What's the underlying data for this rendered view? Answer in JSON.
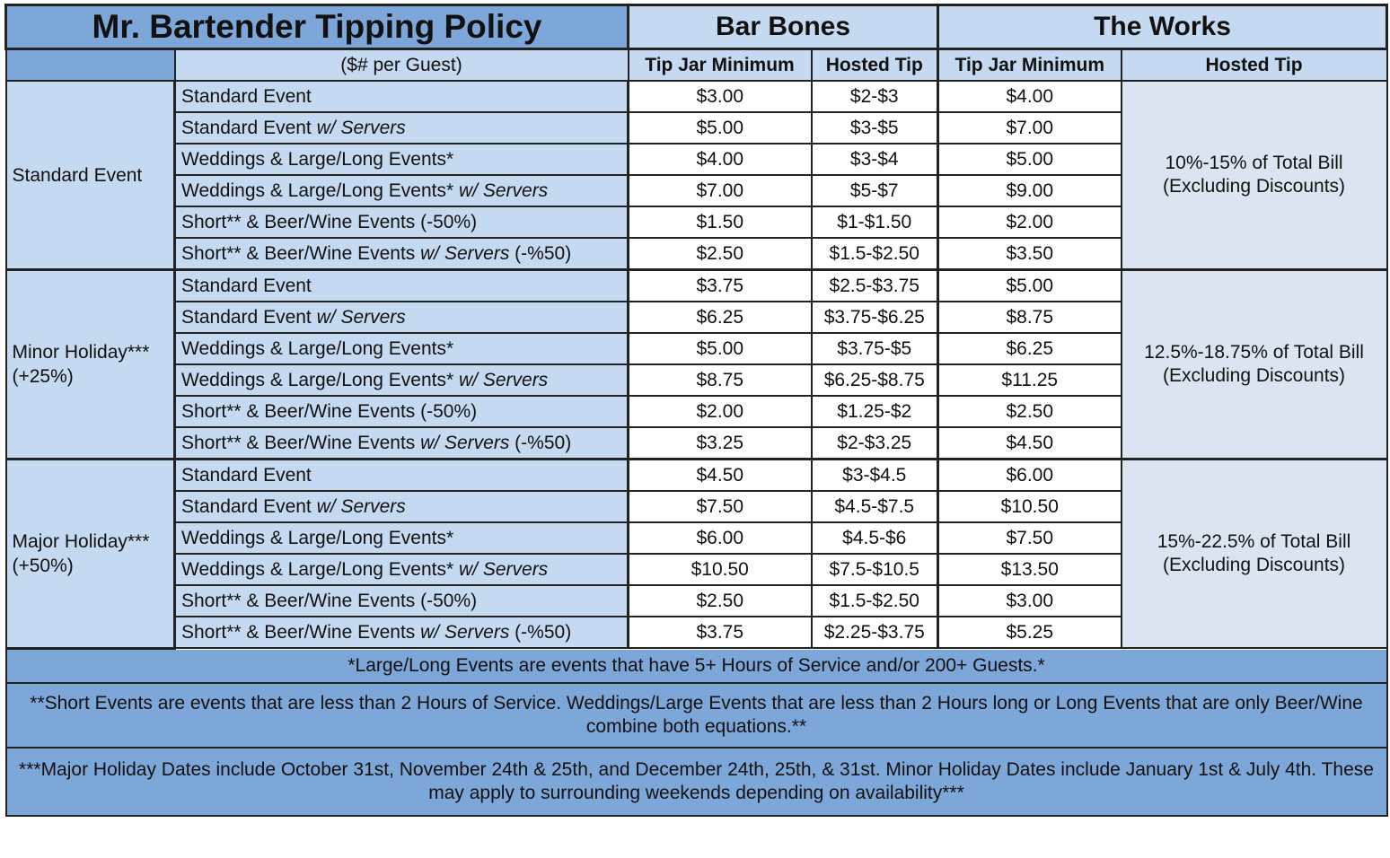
{
  "title": "Mr. Bartender Tipping Policy",
  "packages": [
    {
      "name": "Bar Bones",
      "col1": "Tip Jar Minimum",
      "col2": "Hosted Tip"
    },
    {
      "name": "The Works",
      "col1": "Tip Jar Minimum",
      "col2": "Hosted Tip"
    }
  ],
  "unit_note": "($# per Guest)",
  "event_labels": {
    "standard": "Standard Event",
    "wedding": "Weddings & Large/Long Events*",
    "short": "Short** & Beer/Wine Events",
    "w_servers": "w/ Servers",
    "short_pct": "(-50%)",
    "short_servers_pct": "(-%50)"
  },
  "sections": [
    {
      "category": "Standard Event",
      "category_sub": "",
      "hosted_line1": "10%-15% of Total Bill",
      "hosted_line2": "(Excluding Discounts)",
      "rows": [
        {
          "bb_jar": "$3.00",
          "bb_hosted": "$2-$3",
          "tw_jar": "$4.00"
        },
        {
          "bb_jar": "$5.00",
          "bb_hosted": "$3-$5",
          "tw_jar": "$7.00"
        },
        {
          "bb_jar": "$4.00",
          "bb_hosted": "$3-$4",
          "tw_jar": "$5.00"
        },
        {
          "bb_jar": "$7.00",
          "bb_hosted": "$5-$7",
          "tw_jar": "$9.00"
        },
        {
          "bb_jar": "$1.50",
          "bb_hosted": "$1-$1.50",
          "tw_jar": "$2.00"
        },
        {
          "bb_jar": "$2.50",
          "bb_hosted": "$1.5-$2.50",
          "tw_jar": "$3.50"
        }
      ]
    },
    {
      "category": "Minor Holiday***",
      "category_sub": "(+25%)",
      "hosted_line1": "12.5%-18.75% of Total Bill",
      "hosted_line2": "(Excluding Discounts)",
      "rows": [
        {
          "bb_jar": "$3.75",
          "bb_hosted": "$2.5-$3.75",
          "tw_jar": "$5.00"
        },
        {
          "bb_jar": "$6.25",
          "bb_hosted": "$3.75-$6.25",
          "tw_jar": "$8.75"
        },
        {
          "bb_jar": "$5.00",
          "bb_hosted": "$3.75-$5",
          "tw_jar": "$6.25"
        },
        {
          "bb_jar": "$8.75",
          "bb_hosted": "$6.25-$8.75",
          "tw_jar": "$11.25"
        },
        {
          "bb_jar": "$2.00",
          "bb_hosted": "$1.25-$2",
          "tw_jar": "$2.50"
        },
        {
          "bb_jar": "$3.25",
          "bb_hosted": "$2-$3.25",
          "tw_jar": "$4.50"
        }
      ]
    },
    {
      "category": "Major Holiday***",
      "category_sub": "(+50%)",
      "hosted_line1": "15%-22.5% of Total Bill",
      "hosted_line2": "(Excluding Discounts)",
      "rows": [
        {
          "bb_jar": "$4.50",
          "bb_hosted": "$3-$4.5",
          "tw_jar": "$6.00"
        },
        {
          "bb_jar": "$7.50",
          "bb_hosted": "$4.5-$7.5",
          "tw_jar": "$10.50"
        },
        {
          "bb_jar": "$6.00",
          "bb_hosted": "$4.5-$6",
          "tw_jar": "$7.50"
        },
        {
          "bb_jar": "$10.50",
          "bb_hosted": "$7.5-$10.5",
          "tw_jar": "$13.50"
        },
        {
          "bb_jar": "$2.50",
          "bb_hosted": "$1.5-$2.50",
          "tw_jar": "$3.00"
        },
        {
          "bb_jar": "$3.75",
          "bb_hosted": "$2.25-$3.75",
          "tw_jar": "$5.25"
        }
      ]
    }
  ],
  "footnotes": [
    "*Large/Long Events are events that have 5+ Hours of Service and/or 200+ Guests.*",
    "**Short Events are events that are less than 2 Hours of Service. Weddings/Large Events that are less than 2 Hours long or Long Events that are only Beer/Wine combine both equations.**",
    "***Major Holiday Dates include October 31st, November 24th & 25th, and December 24th, 25th, & 31st. Minor Holiday Dates include January 1st & July 4th. These may apply to surrounding weekends depending on availability***"
  ],
  "colors": {
    "header_blue": "#7da6d9",
    "light_blue": "#c5d9f1",
    "hosted_blue": "#dbe5f1"
  }
}
